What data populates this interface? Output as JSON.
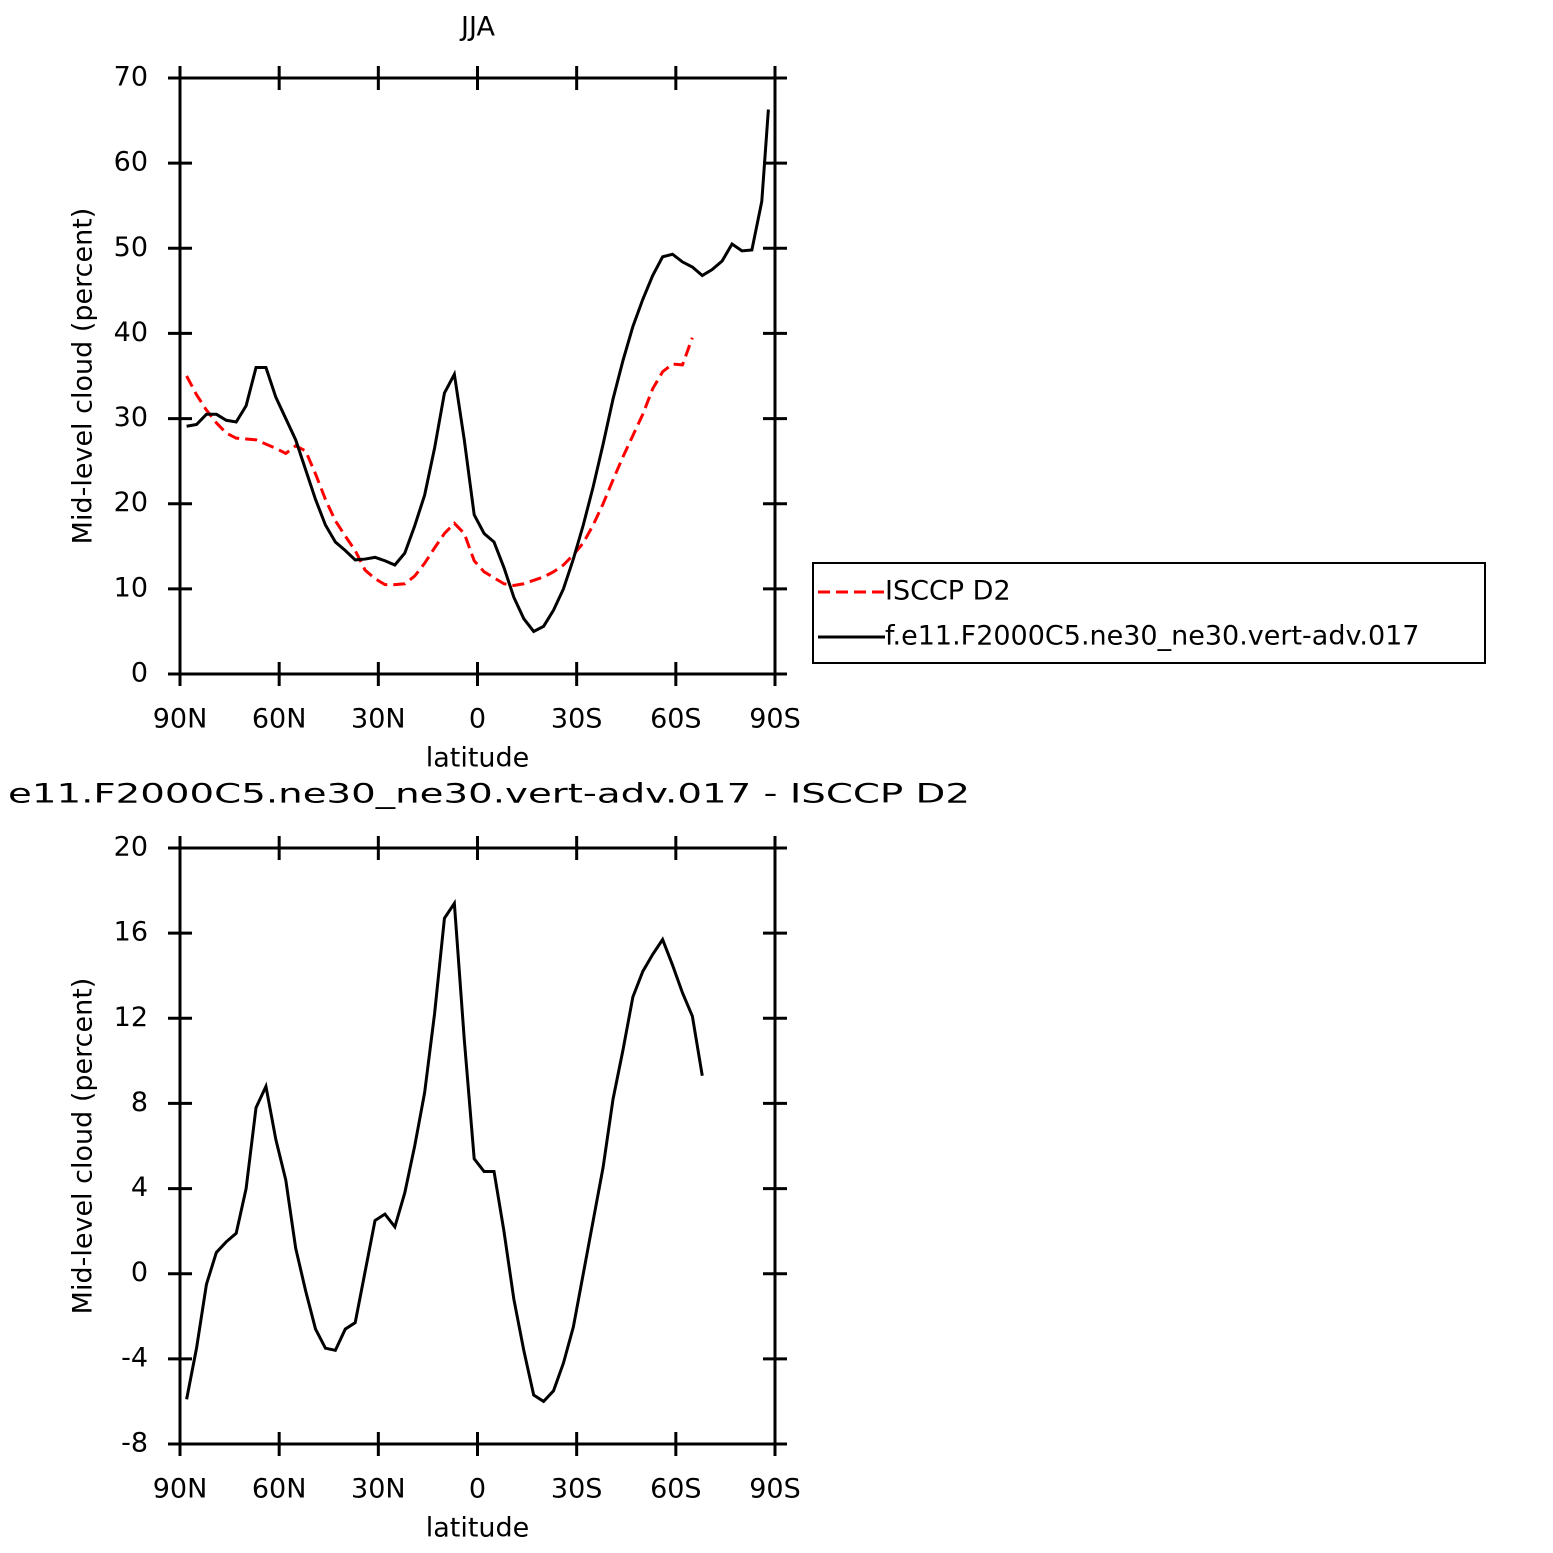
{
  "chart_data": [
    {
      "type": "line",
      "title": "JJA",
      "xlabel": "latitude",
      "ylabel": "Mid-level cloud (percent)",
      "x": [
        88,
        85,
        82,
        79,
        76,
        73,
        70,
        67,
        64,
        61,
        58,
        55,
        52,
        49,
        46,
        43,
        40,
        37,
        34,
        31,
        28,
        25,
        22,
        19,
        16,
        13,
        10,
        7,
        4,
        1,
        -2,
        -5,
        -8,
        -11,
        -14,
        -17,
        -20,
        -23,
        -26,
        -29,
        -32,
        -35,
        -38,
        -41,
        -44,
        -47,
        -50,
        -53,
        -56,
        -59,
        -62,
        -65,
        -68,
        -71,
        -74,
        -77,
        -80,
        -83,
        -86,
        -88
      ],
      "series": [
        {
          "name": "ISCCP D2",
          "color": "#ff0000",
          "linestyle": "dashed",
          "values": [
            35.0,
            32.8,
            31,
            29.5,
            28.3,
            27.7,
            27.6,
            27.5,
            27,
            26.5,
            25.9,
            26.8,
            26.2,
            23.5,
            20.5,
            18,
            16.2,
            14.5,
            12.2,
            11.2,
            10.5,
            10.5,
            10.6,
            11.5,
            13,
            14.8,
            16.5,
            17.7,
            16.5,
            13.3,
            12,
            11.3,
            10.6,
            10.4,
            10.6,
            11,
            11.4,
            12,
            12.8,
            14,
            15.4,
            17.5,
            20,
            22.8,
            25.5,
            28,
            30.5,
            33.5,
            35.5,
            36.4,
            36.3,
            39.5,
            null,
            null,
            null,
            null,
            null,
            null,
            null,
            null
          ]
        },
        {
          "name": "f.e11.F2000C5.ne30_ne30.vert-adv.017",
          "color": "#000000",
          "linestyle": "solid",
          "values": [
            29.1,
            29.3,
            30.5,
            30.5,
            29.8,
            29.6,
            31.5,
            36.0,
            36,
            32.5,
            30,
            27.5,
            24,
            20.5,
            17.5,
            15.5,
            14.5,
            13.4,
            13.5,
            13.7,
            13.3,
            12.8,
            14.2,
            17.4,
            21,
            26.5,
            33,
            35.2,
            27.5,
            18.7,
            16.5,
            15.5,
            12.5,
            9,
            6.5,
            5,
            5.6,
            7.5,
            10,
            13.5,
            17.5,
            22,
            27,
            32.3,
            36.8,
            40.8,
            44,
            46.8,
            49,
            49.3,
            48.4,
            47.8,
            46.8,
            47.5,
            48.5,
            50.5,
            49.7,
            49.8,
            55.5,
            66.3
          ]
        }
      ],
      "xlim": [
        90,
        -90
      ],
      "xticks": [
        {
          "value": 90,
          "label": "90N"
        },
        {
          "value": 60,
          "label": "60N"
        },
        {
          "value": 30,
          "label": "30N"
        },
        0,
        {
          "value": -30,
          "label": "30S"
        },
        {
          "value": -60,
          "label": "60S"
        },
        {
          "value": -90,
          "label": "90S"
        }
      ],
      "ylim": [
        0,
        70
      ],
      "yticks": [
        0,
        10,
        20,
        30,
        40,
        50,
        60,
        70
      ],
      "legend": "right"
    },
    {
      "type": "line",
      "title": "e11.F2000C5.ne30_ne30.vert-adv.017 - ISCCP D2",
      "xlabel": "latitude",
      "ylabel": "Mid-level cloud (percent)",
      "x": [
        88,
        85,
        82,
        79,
        76,
        73,
        70,
        67,
        64,
        61,
        58,
        55,
        52,
        49,
        46,
        43,
        40,
        37,
        34,
        31,
        28,
        25,
        22,
        19,
        16,
        13,
        10,
        7,
        4,
        1,
        -2,
        -5,
        -8,
        -11,
        -14,
        -17,
        -20,
        -23,
        -26,
        -29,
        -32,
        -35,
        -38,
        -41,
        -44,
        -47,
        -50,
        -53,
        -56,
        -59,
        -62,
        -65,
        -68,
        -71,
        -74,
        -77,
        -80,
        -83,
        -86,
        -88
      ],
      "series": [
        {
          "color": "#000000",
          "linestyle": "solid",
          "values": [
            -5.9,
            -3.5,
            -0.5,
            1.0,
            1.5,
            1.9,
            4.0,
            7.8,
            8.8,
            6.3,
            4.4,
            1.2,
            -0.8,
            -2.6,
            -3.5,
            -3.6,
            -2.6,
            -2.3,
            0.1,
            2.5,
            2.8,
            2.2,
            3.8,
            6.0,
            8.5,
            12.2,
            16.7,
            17.4,
            11,
            5.4,
            4.8,
            4.8,
            2.0,
            -1.2,
            -3.6,
            -5.7,
            -6.0,
            -5.5,
            -4.2,
            -2.5,
            0,
            2.5,
            5,
            8.2,
            10.5,
            13.0,
            14.2,
            15.0,
            15.7,
            14.5,
            13.2,
            12.1,
            9.3,
            null,
            null,
            null,
            null,
            null,
            null,
            null
          ]
        }
      ],
      "xlim": [
        90,
        -90
      ],
      "xticks": [
        {
          "value": 90,
          "label": "90N"
        },
        {
          "value": 60,
          "label": "60N"
        },
        {
          "value": 30,
          "label": "30N"
        },
        0,
        {
          "value": -30,
          "label": "30S"
        },
        {
          "value": -60,
          "label": "60S"
        },
        {
          "value": -90,
          "label": "90S"
        }
      ],
      "ylim": [
        -8,
        20
      ],
      "yticks": [
        -8,
        -4,
        0,
        4,
        8,
        12,
        16,
        20
      ]
    }
  ]
}
